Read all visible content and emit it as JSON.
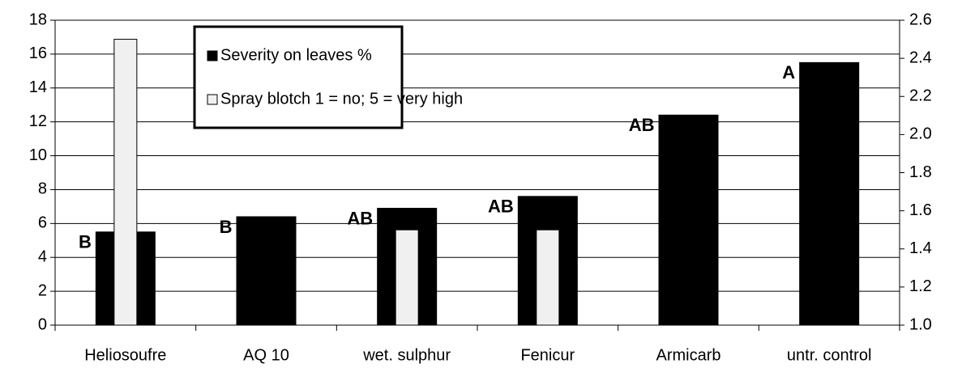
{
  "chart_data": {
    "type": "bar",
    "categories": [
      "Heliosoufre",
      "AQ 10",
      "wet. sulphur",
      "Fenicur",
      "Armicarb",
      "untr. control"
    ],
    "series": [
      {
        "name": "Severity on leaves %",
        "color": "#000000",
        "values": [
          5.5,
          6.4,
          6.9,
          7.6,
          12.4,
          15.5
        ]
      },
      {
        "name": "Spray blotch 1 = no; 5 = very high",
        "color": "#f0f0f0",
        "values": [
          2.5,
          null,
          1.5,
          1.5,
          null,
          null
        ],
        "axis": "y2"
      }
    ],
    "annotations": [
      "B",
      "B",
      "AB",
      "AB",
      "AB",
      "A"
    ],
    "ylim": [
      0,
      18
    ],
    "yticks": [
      0,
      2,
      4,
      6,
      8,
      10,
      12,
      14,
      16,
      18
    ],
    "y2lim": [
      1,
      2.6
    ],
    "y2ticks": [
      {
        "value": 1,
        "label": "1.0"
      },
      1.2,
      1.4,
      1.6,
      1.8,
      {
        "value": 2,
        "label": "2.0"
      },
      2.2,
      2.4,
      2.6
    ],
    "grid": true,
    "legend": "top-left"
  }
}
